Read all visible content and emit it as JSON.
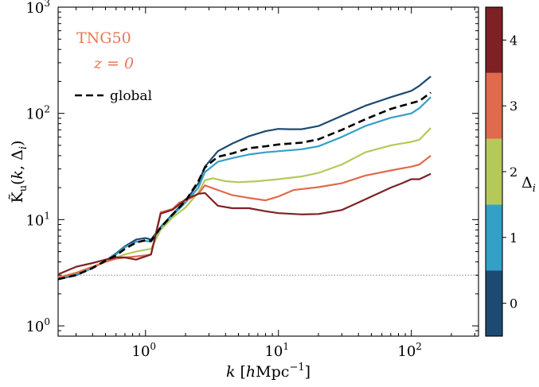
{
  "chart_data": {
    "type": "line",
    "xscale": "log",
    "yscale": "log",
    "xlim": [
      0.22,
      320
    ],
    "ylim": [
      0.8,
      1000
    ],
    "xlabel": "k [hMpc⁻¹]",
    "ylabel": "K̃u(k, Δi)",
    "x_ticks": [
      {
        "base": "10",
        "exp": "0",
        "value": 1
      },
      {
        "base": "10",
        "exp": "1",
        "value": 10
      },
      {
        "base": "10",
        "exp": "2",
        "value": 100
      }
    ],
    "y_ticks": [
      {
        "base": "10",
        "exp": "0",
        "value": 1
      },
      {
        "base": "10",
        "exp": "1",
        "value": 10
      },
      {
        "base": "10",
        "exp": "2",
        "value": 100
      },
      {
        "base": "10",
        "exp": "3",
        "value": 1000
      }
    ],
    "annotations": {
      "line1": "TNG50",
      "line2": "z = 0",
      "color": "#e4795a"
    },
    "legend": {
      "placement": "upper-left",
      "entries": [
        {
          "label": "global",
          "style": "dashed",
          "color": "#000000"
        }
      ]
    },
    "reference_line": {
      "y": 3.0,
      "style": "dotted",
      "color": "#888888"
    },
    "colorbar": {
      "label": "Δi",
      "ticks": [
        {
          "label": "0",
          "value": 0
        },
        {
          "label": "1",
          "value": 1
        },
        {
          "label": "2",
          "value": 2
        },
        {
          "label": "3",
          "value": 3
        },
        {
          "label": "4",
          "value": 4
        }
      ],
      "range": [
        -0.5,
        4.5
      ],
      "colors": [
        "#1c4a72",
        "#34a0c8",
        "#b5c95a",
        "#e06a4c",
        "#7f2025"
      ]
    },
    "series": [
      {
        "delta": 0,
        "color": "#1c4a72",
        "style": "solid",
        "points": [
          [
            0.22,
            2.75
          ],
          [
            0.3,
            3.0
          ],
          [
            0.4,
            3.5
          ],
          [
            0.5,
            4.1
          ],
          [
            0.6,
            4.8
          ],
          [
            0.7,
            5.6
          ],
          [
            0.85,
            6.5
          ],
          [
            1.0,
            6.7
          ],
          [
            1.1,
            6.5
          ],
          [
            1.3,
            8.5
          ],
          [
            1.6,
            11.3
          ],
          [
            2.0,
            15.0
          ],
          [
            2.5,
            22.0
          ],
          [
            2.8,
            31.5
          ],
          [
            3.5,
            44.0
          ],
          [
            4.5,
            52.0
          ],
          [
            6.0,
            61.0
          ],
          [
            8.0,
            68.0
          ],
          [
            10.0,
            71.5
          ],
          [
            12.0,
            71.0
          ],
          [
            15.0,
            71.0
          ],
          [
            20.0,
            76.0
          ],
          [
            30.0,
            95.0
          ],
          [
            45.0,
            118.0
          ],
          [
            70.0,
            142.0
          ],
          [
            100.0,
            163.0
          ],
          [
            115.0,
            182.0
          ],
          [
            140.0,
            223.0
          ]
        ]
      },
      {
        "delta": 1,
        "color": "#34a0c8",
        "style": "solid",
        "points": [
          [
            0.22,
            2.8
          ],
          [
            0.3,
            3.05
          ],
          [
            0.4,
            3.5
          ],
          [
            0.5,
            4.1
          ],
          [
            0.6,
            4.7
          ],
          [
            0.7,
            5.5
          ],
          [
            0.85,
            6.2
          ],
          [
            1.0,
            6.3
          ],
          [
            1.1,
            6.2
          ],
          [
            1.3,
            8.3
          ],
          [
            1.6,
            11.0
          ],
          [
            2.0,
            14.5
          ],
          [
            2.5,
            20.0
          ],
          [
            2.8,
            28.0
          ],
          [
            3.5,
            35.0
          ],
          [
            4.5,
            38.0
          ],
          [
            6.0,
            41.0
          ],
          [
            8.0,
            43.0
          ],
          [
            10.0,
            44.0
          ],
          [
            15.0,
            46.0
          ],
          [
            20.0,
            49.0
          ],
          [
            30.0,
            60.0
          ],
          [
            45.0,
            76.0
          ],
          [
            70.0,
            91.0
          ],
          [
            100.0,
            100.0
          ],
          [
            115.0,
            112.0
          ],
          [
            140.0,
            142.0
          ]
        ]
      },
      {
        "delta": 2,
        "color": "#b5c95a",
        "style": "solid",
        "points": [
          [
            0.22,
            2.85
          ],
          [
            0.3,
            3.15
          ],
          [
            0.4,
            3.6
          ],
          [
            0.5,
            4.0
          ],
          [
            0.6,
            4.4
          ],
          [
            0.7,
            4.7
          ],
          [
            0.85,
            5.0
          ],
          [
            1.0,
            5.2
          ],
          [
            1.1,
            5.3
          ],
          [
            1.3,
            8.0
          ],
          [
            1.6,
            10.5
          ],
          [
            2.0,
            13.0
          ],
          [
            2.5,
            18.0
          ],
          [
            2.8,
            23.5
          ],
          [
            3.2,
            24.5
          ],
          [
            4.0,
            23.0
          ],
          [
            5.0,
            22.5
          ],
          [
            7.0,
            23.0
          ],
          [
            10.0,
            24.0
          ],
          [
            15.0,
            25.5
          ],
          [
            20.0,
            27.5
          ],
          [
            30.0,
            33.0
          ],
          [
            45.0,
            43.0
          ],
          [
            70.0,
            50.0
          ],
          [
            100.0,
            54.0
          ],
          [
            115.0,
            56.5
          ],
          [
            140.0,
            73.0
          ]
        ]
      },
      {
        "delta": 3,
        "color": "#e06a4c",
        "style": "solid",
        "points": [
          [
            0.22,
            2.85
          ],
          [
            0.3,
            3.15
          ],
          [
            0.4,
            3.6
          ],
          [
            0.5,
            4.0
          ],
          [
            0.6,
            4.3
          ],
          [
            0.7,
            4.4
          ],
          [
            0.85,
            4.5
          ],
          [
            1.0,
            4.6
          ],
          [
            1.1,
            4.7
          ],
          [
            1.3,
            11.7
          ],
          [
            1.6,
            12.6
          ],
          [
            1.8,
            14.5
          ],
          [
            2.0,
            15.0
          ],
          [
            2.5,
            17.5
          ],
          [
            2.8,
            21.0
          ],
          [
            3.5,
            19.0
          ],
          [
            4.5,
            17.0
          ],
          [
            6.0,
            16.0
          ],
          [
            8.0,
            15.2
          ],
          [
            10.0,
            16.5
          ],
          [
            13.0,
            19.0
          ],
          [
            20.0,
            20.2
          ],
          [
            30.0,
            22.0
          ],
          [
            45.0,
            26.0
          ],
          [
            70.0,
            29.0
          ],
          [
            100.0,
            31.5
          ],
          [
            115.0,
            33.0
          ],
          [
            140.0,
            40.0
          ]
        ]
      },
      {
        "delta": 4,
        "color": "#7f2025",
        "style": "solid",
        "points": [
          [
            0.22,
            3.05
          ],
          [
            0.3,
            3.6
          ],
          [
            0.4,
            3.9
          ],
          [
            0.5,
            4.2
          ],
          [
            0.6,
            4.4
          ],
          [
            0.7,
            4.4
          ],
          [
            0.85,
            4.2
          ],
          [
            1.0,
            4.5
          ],
          [
            1.1,
            4.7
          ],
          [
            1.3,
            11.4
          ],
          [
            1.6,
            12.4
          ],
          [
            2.0,
            15.5
          ],
          [
            2.5,
            17.5
          ],
          [
            2.8,
            17.8
          ],
          [
            3.5,
            13.5
          ],
          [
            4.5,
            12.8
          ],
          [
            6.0,
            12.8
          ],
          [
            8.0,
            12.0
          ],
          [
            10.0,
            11.5
          ],
          [
            15.0,
            11.2
          ],
          [
            20.0,
            11.3
          ],
          [
            30.0,
            12.3
          ],
          [
            45.0,
            15.5
          ],
          [
            70.0,
            20.0
          ],
          [
            85.0,
            22.0
          ],
          [
            100.0,
            24.0
          ],
          [
            115.0,
            24.0
          ],
          [
            140.0,
            27.0
          ]
        ]
      },
      {
        "name": "global",
        "color": "#000000",
        "style": "dashed",
        "points": [
          [
            0.22,
            2.75
          ],
          [
            0.3,
            3.0
          ],
          [
            0.4,
            3.5
          ],
          [
            0.5,
            4.1
          ],
          [
            0.6,
            4.6
          ],
          [
            0.7,
            5.3
          ],
          [
            0.85,
            6.1
          ],
          [
            1.0,
            6.4
          ],
          [
            1.1,
            6.3
          ],
          [
            1.3,
            8.4
          ],
          [
            1.6,
            11.2
          ],
          [
            2.0,
            15.0
          ],
          [
            2.5,
            23.0
          ],
          [
            2.8,
            31.0
          ],
          [
            3.5,
            39.0
          ],
          [
            4.5,
            42.0
          ],
          [
            6.0,
            47.0
          ],
          [
            8.0,
            49.0
          ],
          [
            10.0,
            51.0
          ],
          [
            15.0,
            53.0
          ],
          [
            20.0,
            57.0
          ],
          [
            30.0,
            70.0
          ],
          [
            45.0,
            88.0
          ],
          [
            70.0,
            110.0
          ],
          [
            100.0,
            125.0
          ],
          [
            115.0,
            131.0
          ],
          [
            140.0,
            157.0
          ]
        ]
      }
    ]
  }
}
